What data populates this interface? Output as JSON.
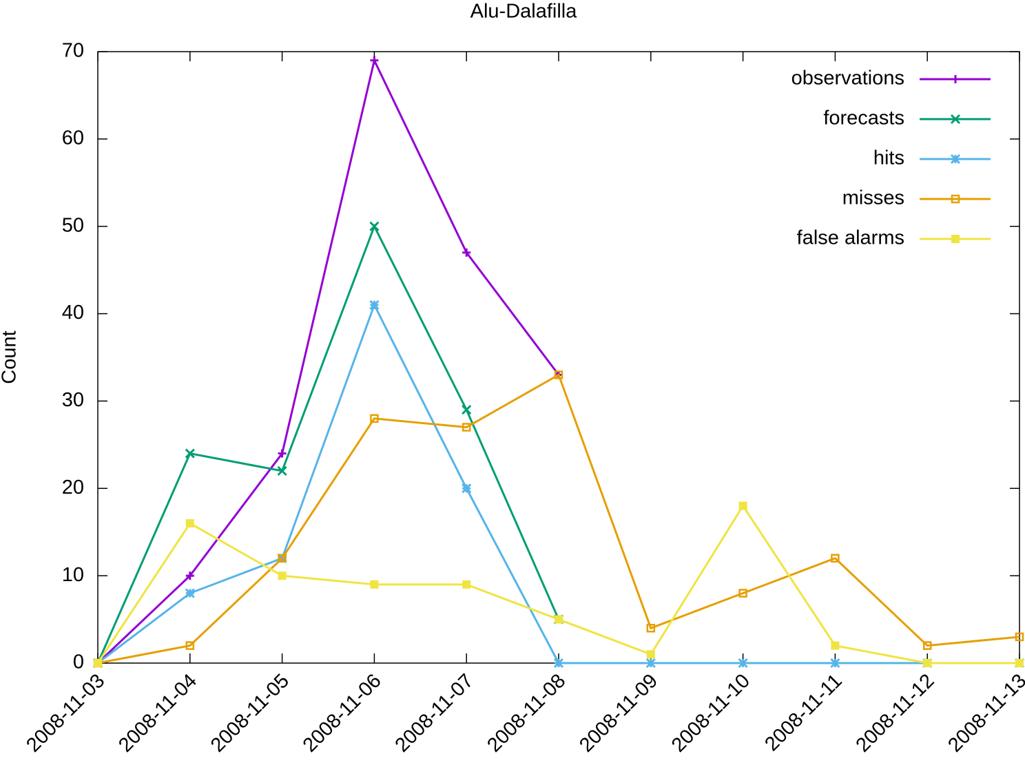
{
  "chart_data": {
    "type": "line",
    "title": "Alu-Dalafilla",
    "y_label": "Count",
    "categories": [
      "2008-11-03",
      "2008-11-04",
      "2008-11-05",
      "2008-11-06",
      "2008-11-07",
      "2008-11-08",
      "2008-11-09",
      "2008-11-10",
      "2008-11-11",
      "2008-11-12",
      "2008-11-13"
    ],
    "series": [
      {
        "name": "observations",
        "color": "#9400d3",
        "marker": "plus",
        "values": [
          0,
          10,
          24,
          69,
          47,
          33,
          null,
          null,
          null,
          null,
          null
        ]
      },
      {
        "name": "forecasts",
        "color": "#009e73",
        "marker": "cross",
        "values": [
          0,
          24,
          22,
          50,
          29,
          5,
          null,
          null,
          null,
          null,
          null
        ]
      },
      {
        "name": "hits",
        "color": "#56b4e9",
        "marker": "star",
        "values": [
          0,
          8,
          12,
          41,
          20,
          0,
          0,
          0,
          0,
          0,
          0
        ]
      },
      {
        "name": "misses",
        "color": "#e69f00",
        "marker": "open-square",
        "values": [
          0,
          2,
          12,
          28,
          27,
          33,
          4,
          8,
          12,
          2,
          3
        ]
      },
      {
        "name": "false alarms",
        "color": "#f0e442",
        "marker": "filled-square",
        "values": [
          0,
          16,
          10,
          9,
          9,
          5,
          1,
          18,
          2,
          0,
          0
        ]
      }
    ],
    "ylim": [
      0,
      70
    ],
    "yticks": [
      0,
      10,
      20,
      30,
      40,
      50,
      60,
      70
    ],
    "legend": "top-right"
  }
}
